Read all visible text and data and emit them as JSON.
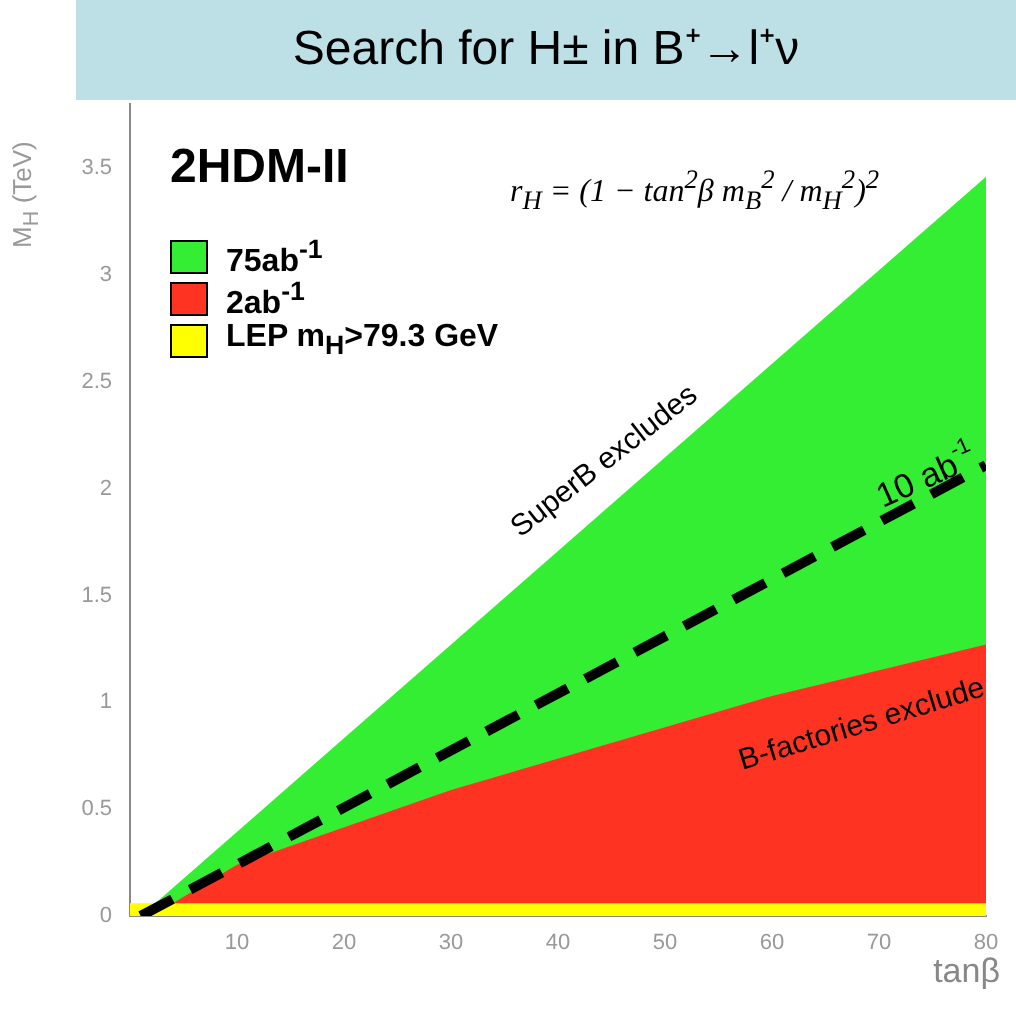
{
  "chart_data": {
    "type": "area",
    "title": "Search for H± in B⁺→l⁺ν",
    "xlabel": "tanβ",
    "ylabel": "M$_{H}$ (TeV)",
    "annotations": [
      "2HDM-II",
      "r$_{H}$ = (1 − tan$^{2}$β m$_{B}$$^{2}$ / m$_{H}$$^{2}$)$^{2}$",
      "SuperB excludes",
      "B-factories exclude"
    ],
    "xlim": [
      0,
      80
    ],
    "xticks": [
      10,
      20,
      30,
      40,
      50,
      60,
      70,
      80
    ],
    "ylim": [
      0,
      3.8
    ],
    "yticks": [
      0,
      0.5,
      1,
      1.5,
      2,
      2.5,
      3,
      3.5
    ],
    "grid": false,
    "legend": "top left",
    "series": [
      {
        "name": "75ab$^{-1}$",
        "color": "#33ee33",
        "x": [
          1,
          80
        ],
        "values": [
          0,
          3.46
        ]
      },
      {
        "name": "2ab$^{-1}$",
        "color": "#ff3322",
        "x": [
          1,
          4,
          10,
          30,
          60,
          80
        ],
        "values": [
          0,
          0.06,
          0.24,
          0.59,
          1.03,
          1.27
        ]
      },
      {
        "name": "LEP m$_{H}$>79.3 GeV",
        "color": "#ffff00",
        "x": [
          0,
          80
        ],
        "values": [
          0.06,
          0.06
        ]
      },
      {
        "name": "10 ab$^{-1}$",
        "type": "line",
        "line_style": "dashed",
        "marker": "none",
        "color": "#000000",
        "x": [
          1,
          80
        ],
        "values": [
          0,
          2.11
        ]
      }
    ]
  }
}
